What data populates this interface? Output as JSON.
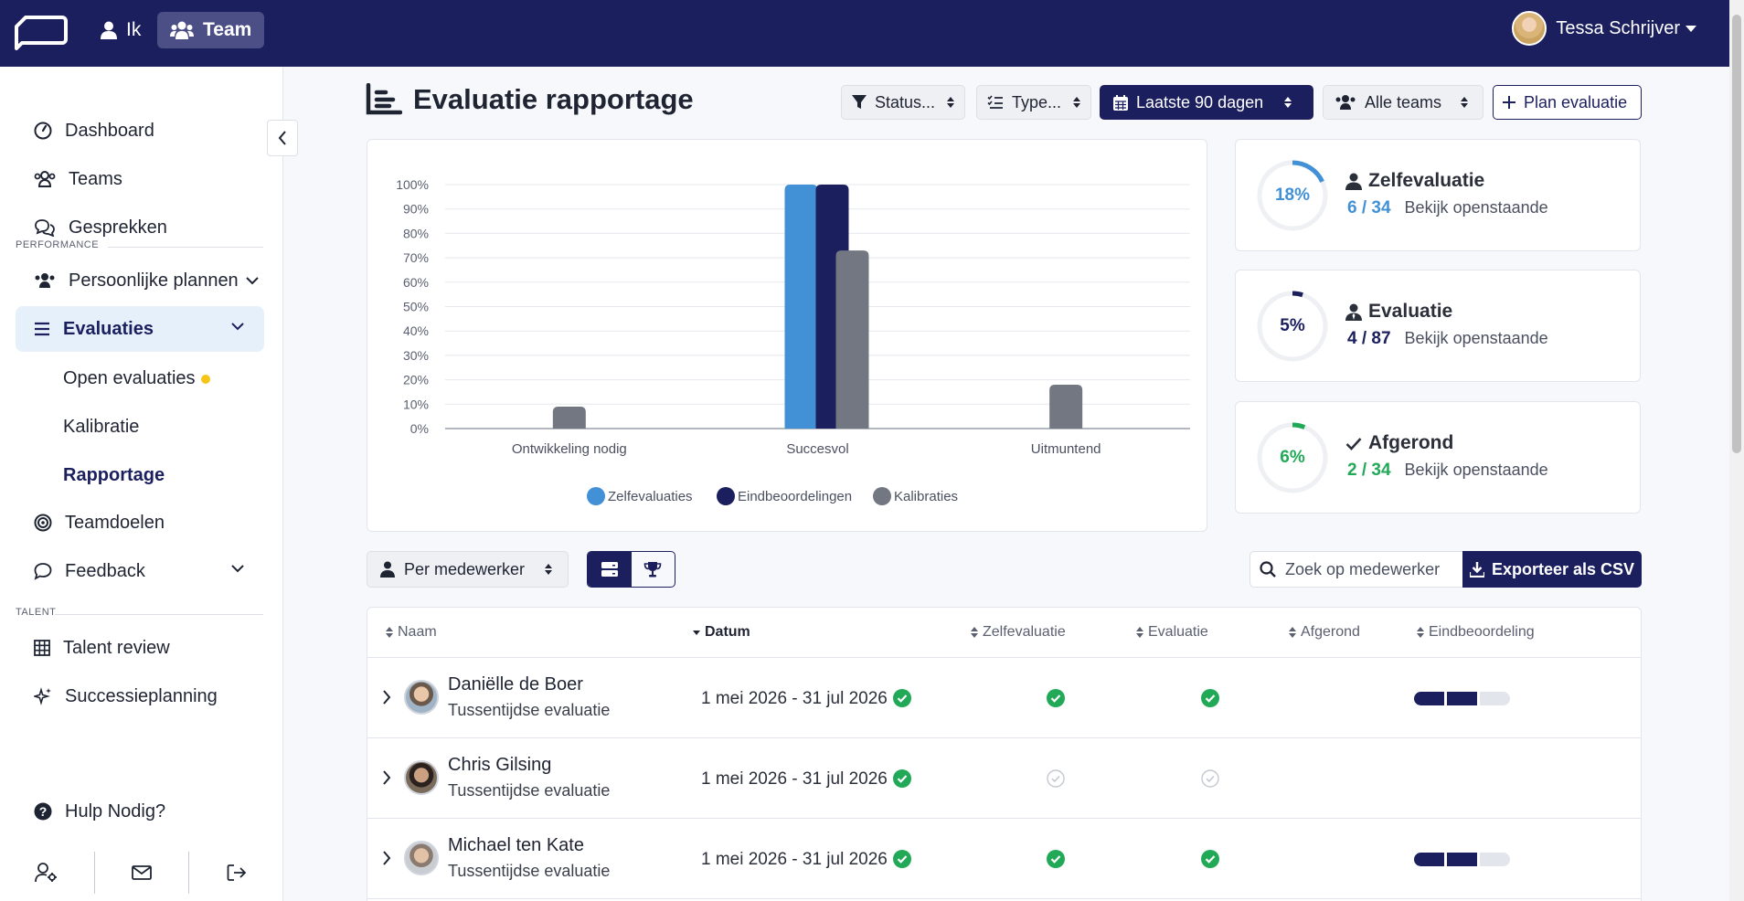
{
  "topbar": {
    "nav_ik": "Ik",
    "nav_team": "Team",
    "user_name": "Tessa Schrijver"
  },
  "sidebar": {
    "items": [
      {
        "label": "Dashboard",
        "icon": "gauge-icon"
      },
      {
        "label": "Teams",
        "icon": "users-icon"
      },
      {
        "label": "Gesprekken",
        "icon": "chat-icon"
      },
      {
        "label": "Persoonlijke plannen",
        "icon": "users-icon"
      },
      {
        "label": "Evaluaties",
        "icon": "list-icon"
      },
      {
        "label": "Teamdoelen",
        "icon": "target-icon"
      },
      {
        "label": "Feedback",
        "icon": "comment-icon"
      },
      {
        "label": "Talent review",
        "icon": "grid-icon"
      },
      {
        "label": "Successieplanning",
        "icon": "sparkle-icon"
      },
      {
        "label": "Hulp Nodig?",
        "icon": "help-icon"
      }
    ],
    "section_performance": "PERFORMANCE",
    "section_talent": "TALENT",
    "sub_items": [
      "Open evaluaties",
      "Kalibratie",
      "Rapportage"
    ]
  },
  "header": {
    "title": "Evaluatie rapportage",
    "filters": {
      "status": "Status...",
      "type": "Type...",
      "period": "Laatste 90 dagen",
      "teams": "Alle teams",
      "plan": "Plan evaluatie"
    }
  },
  "chart_data": {
    "type": "bar",
    "categories": [
      "Ontwikkeling nodig",
      "Succesvol",
      "Uitmuntend"
    ],
    "series": [
      {
        "name": "Zelfevaluaties",
        "values": [
          0,
          100,
          0
        ]
      },
      {
        "name": "Eindbeoordelingen",
        "values": [
          0,
          100,
          0
        ]
      },
      {
        "name": "Kalibraties",
        "values": [
          9,
          73,
          18
        ]
      }
    ],
    "yticks": [
      "0%",
      "10%",
      "20%",
      "30%",
      "40%",
      "50%",
      "60%",
      "70%",
      "80%",
      "90%",
      "100%"
    ],
    "ylim": [
      0,
      100
    ],
    "colors": [
      "#4291d6",
      "#1b1f5e",
      "#727782"
    ],
    "legend": "bottom",
    "grid": true
  },
  "stats": [
    {
      "percent": "18%",
      "value": 18,
      "title": "Zelfevaluatie",
      "count": "6 / 34",
      "link": "Bekijk openstaande",
      "color": "#4291d6",
      "icon": "user-icon"
    },
    {
      "percent": "5%",
      "value": 5,
      "title": "Evaluatie",
      "count": "4 / 87",
      "link": "Bekijk openstaande",
      "color": "#1b1f5e",
      "icon": "user-tie-icon"
    },
    {
      "percent": "6%",
      "value": 6,
      "title": "Afgerond",
      "count": "2 / 34",
      "link": "Bekijk openstaande",
      "color": "#22a957",
      "icon": "check-icon"
    }
  ],
  "toolbar": {
    "group_by": "Per medewerker",
    "search_placeholder": "Zoek op medewerker",
    "export_label": "Exporteer als CSV"
  },
  "table": {
    "headers": [
      "Naam",
      "Datum",
      "Zelfevaluatie",
      "Evaluatie",
      "Afgerond",
      "Eindbeoordeling"
    ],
    "rows": [
      {
        "name": "Daniëlle de Boer",
        "type": "Tussentijdse evaluatie",
        "date": "1 mei 2026 - 31 jul 2026",
        "self": true,
        "eval": true,
        "done": true,
        "rating_filled": 2
      },
      {
        "name": "Chris Gilsing",
        "type": "Tussentijdse evaluatie",
        "date": "1 mei 2026 - 31 jul 2026",
        "self": true,
        "eval": false,
        "done": false,
        "rating_filled": null
      },
      {
        "name": "Michael ten Kate",
        "type": "Tussentijdse evaluatie",
        "date": "1 mei 2026 - 31 jul 2026",
        "self": true,
        "eval": true,
        "done": true,
        "rating_filled": 2
      }
    ]
  }
}
